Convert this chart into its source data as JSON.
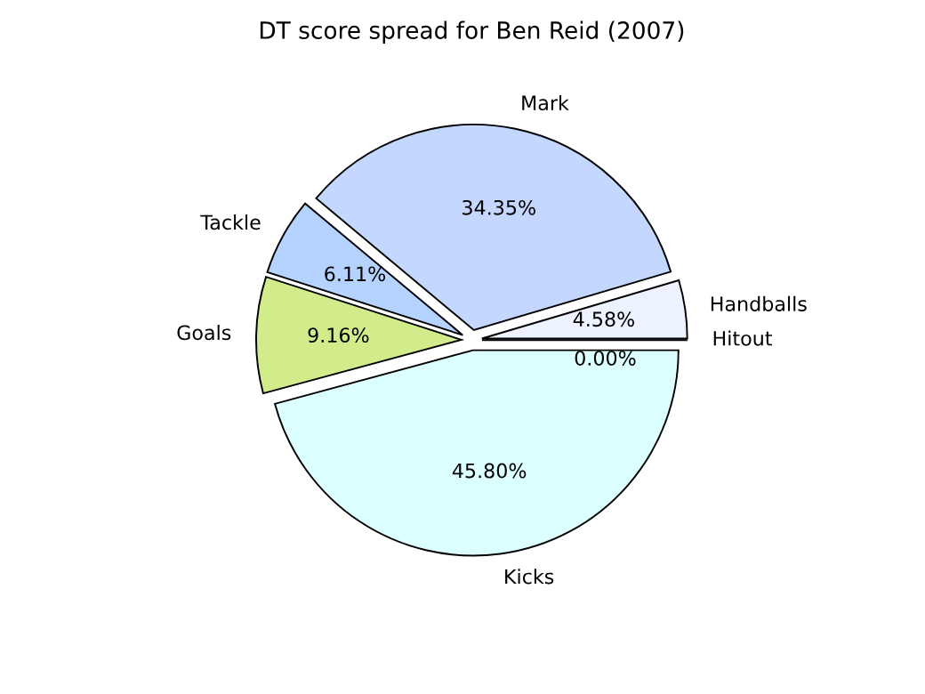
{
  "chart_data": {
    "type": "pie",
    "title": "DT score spread for Ben Reid (2007)",
    "categories": [
      "Handballs",
      "Mark",
      "Tackle",
      "Goals",
      "Kicks",
      "Hitout"
    ],
    "values": [
      4.58,
      34.35,
      6.11,
      9.16,
      45.8,
      0.0
    ],
    "value_labels": [
      "4.58%",
      "34.35%",
      "6.11%",
      "9.16%",
      "45.80%",
      "0.00%"
    ],
    "colors": [
      "#ecf2ff",
      "#c4d8ff",
      "#b4d4ff",
      "#d2ec8c",
      "#dcffff",
      "#ffffff"
    ]
  }
}
